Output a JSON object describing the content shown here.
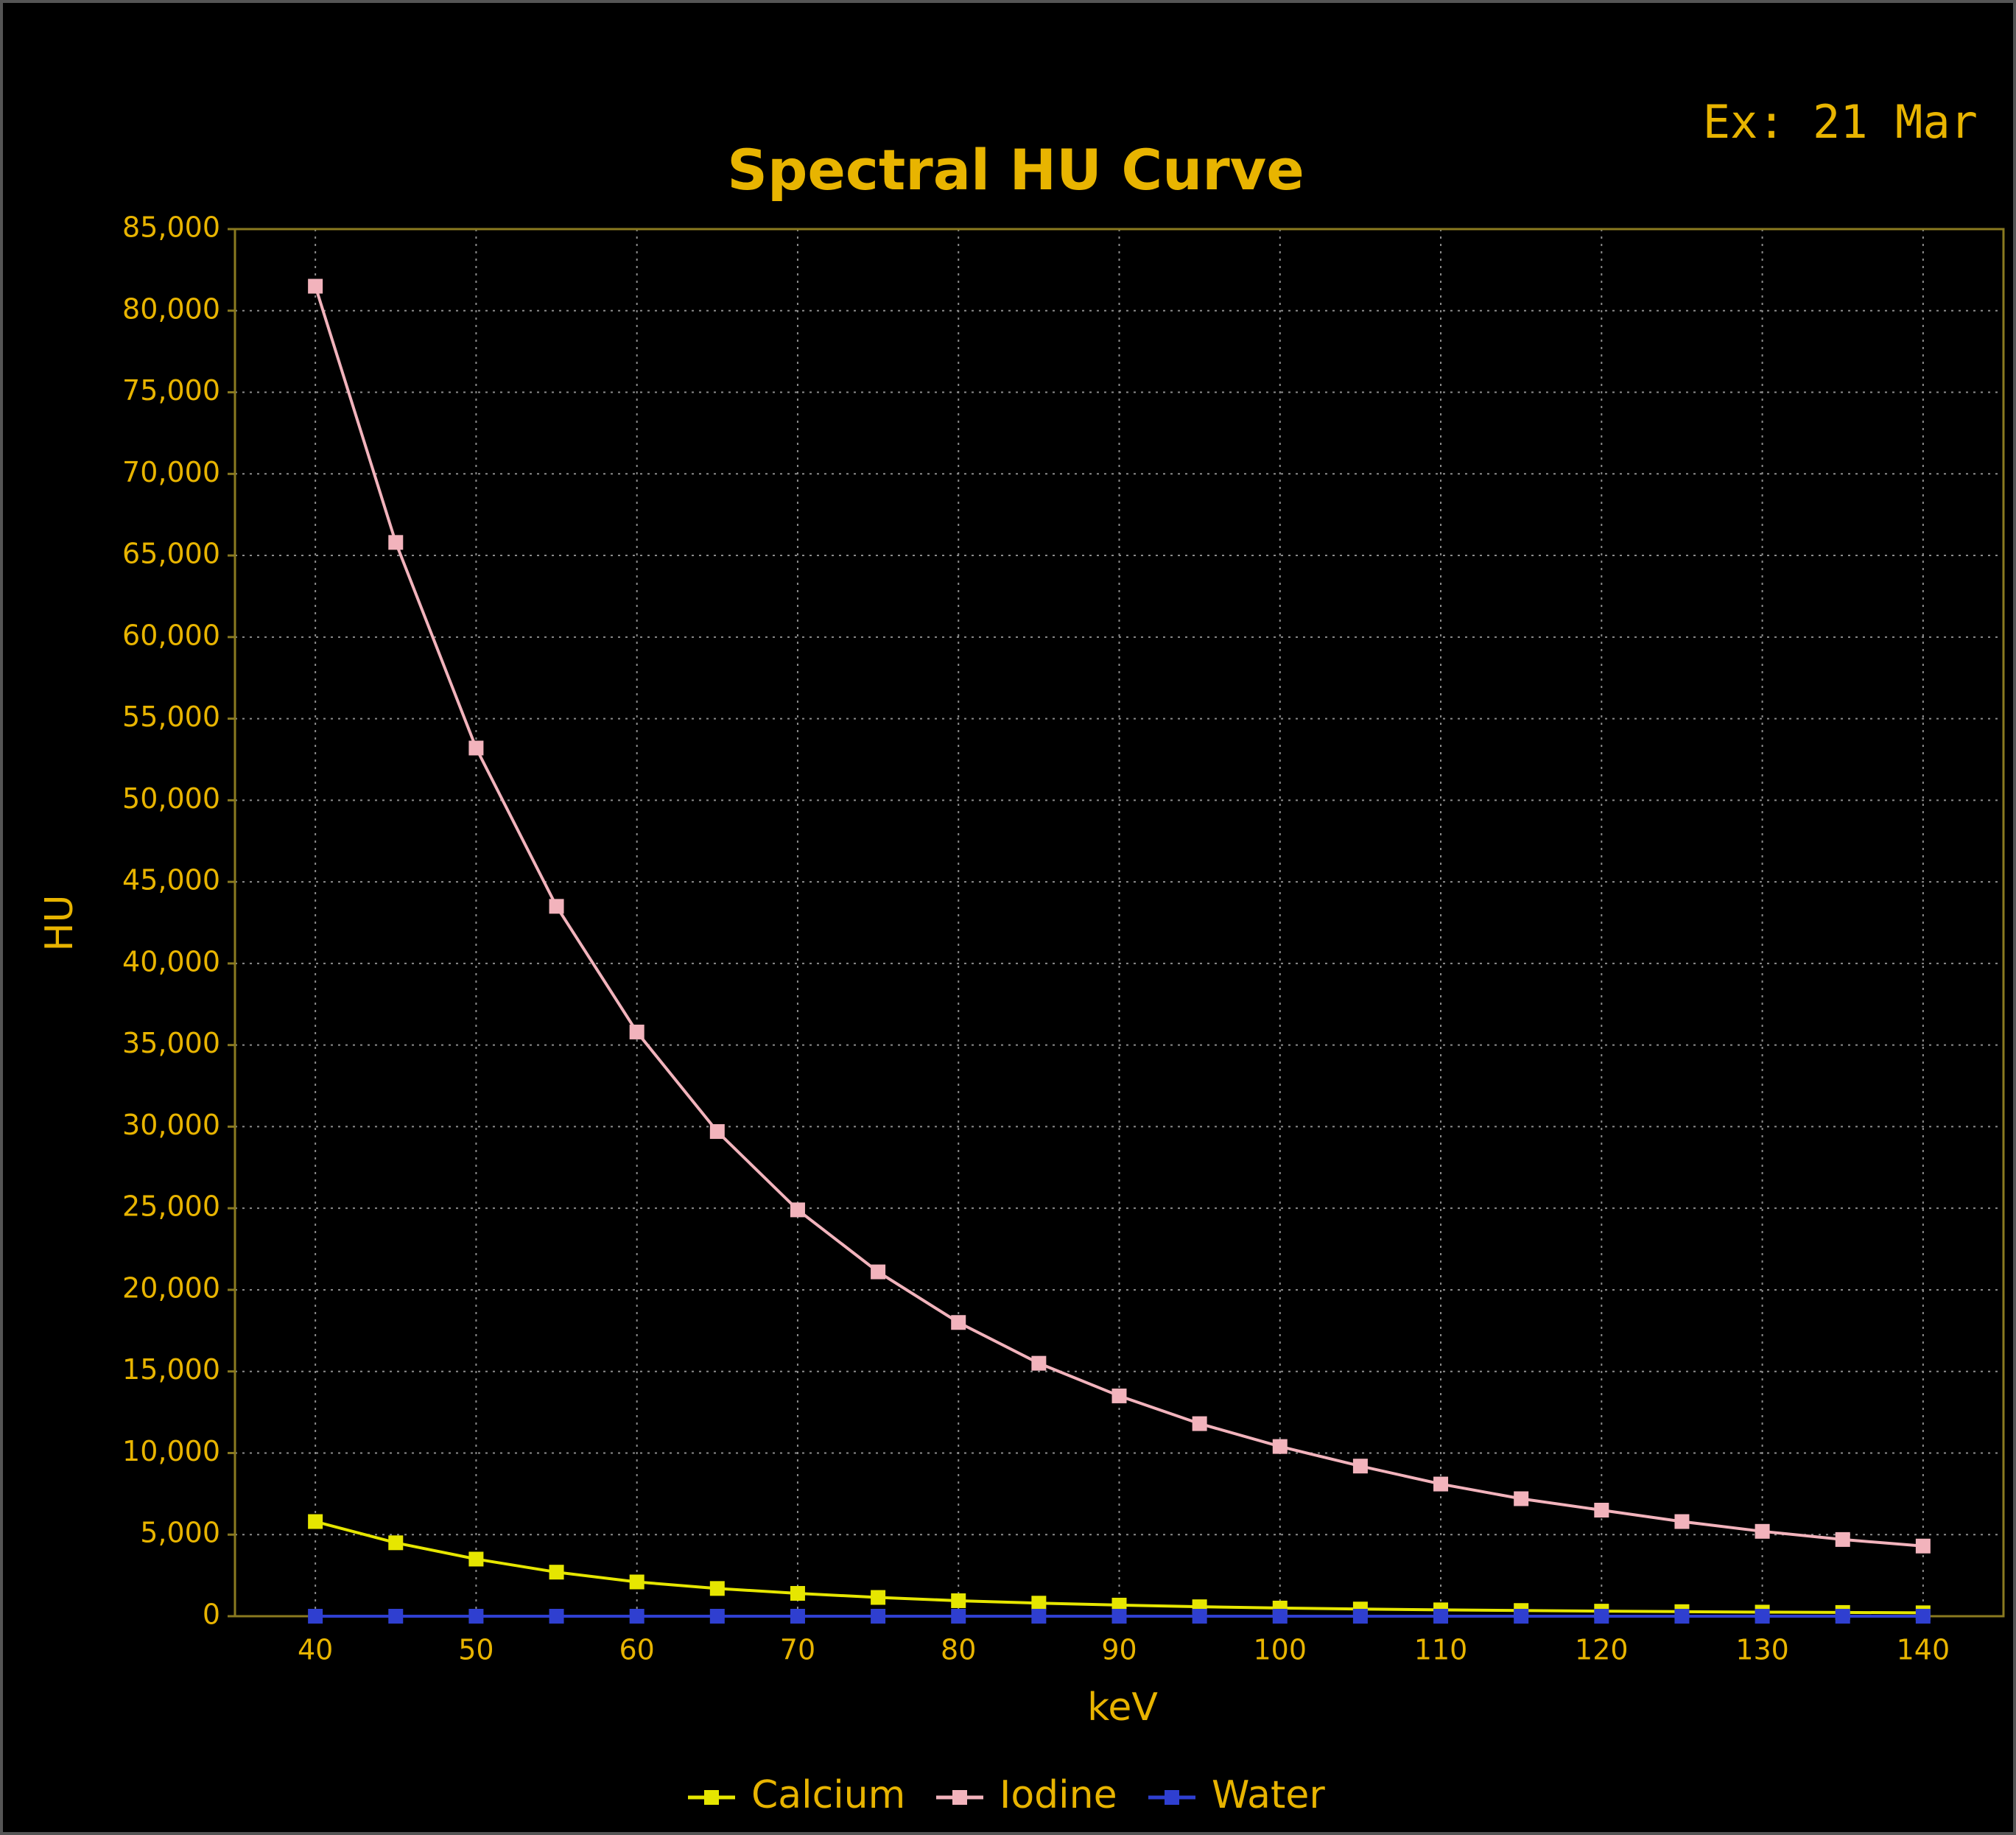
{
  "chart_data": {
    "type": "line",
    "title": "Spectral HU Curve",
    "annotation": "Ex: 21 Mar",
    "x_label": "keV",
    "y_label": "HU",
    "x": [
      40,
      45,
      50,
      55,
      60,
      65,
      70,
      75,
      80,
      85,
      90,
      95,
      100,
      105,
      110,
      115,
      120,
      125,
      130,
      135,
      140
    ],
    "series": [
      {
        "name": "Calcium",
        "color": "#e6e600",
        "values": [
          5800,
          4500,
          3500,
          2700,
          2100,
          1700,
          1400,
          1150,
          950,
          800,
          680,
          580,
          500,
          440,
          390,
          350,
          310,
          280,
          250,
          230,
          210
        ]
      },
      {
        "name": "Iodine",
        "color": "#f2b3bc",
        "values": [
          81500,
          65800,
          53200,
          43500,
          35800,
          29700,
          24900,
          21100,
          18000,
          15500,
          13500,
          11800,
          10400,
          9200,
          8100,
          7200,
          6500,
          5800,
          5200,
          4700,
          4300
        ]
      },
      {
        "name": "Water",
        "color": "#2f3fd0",
        "values": [
          0,
          0,
          0,
          0,
          0,
          0,
          0,
          0,
          0,
          0,
          0,
          0,
          0,
          0,
          0,
          0,
          0,
          0,
          0,
          0,
          0
        ]
      }
    ],
    "xlim": [
      35,
      145
    ],
    "ylim": [
      0,
      85000
    ],
    "xticks": [
      40,
      50,
      60,
      70,
      80,
      90,
      100,
      110,
      120,
      130,
      140
    ],
    "yticks": [
      0,
      {
        "value": 5000,
        "label": "5,000"
      },
      {
        "value": 10000,
        "label": "10,000"
      },
      {
        "value": 15000,
        "label": "15,000"
      },
      {
        "value": 20000,
        "label": "20,000"
      },
      {
        "value": 25000,
        "label": "25,000"
      },
      {
        "value": 30000,
        "label": "30,000"
      },
      {
        "value": 35000,
        "label": "35,000"
      },
      {
        "value": 40000,
        "label": "40,000"
      },
      {
        "value": 45000,
        "label": "45,000"
      },
      {
        "value": 50000,
        "label": "50,000"
      },
      {
        "value": 55000,
        "label": "55,000"
      },
      {
        "value": 60000,
        "label": "60,000"
      },
      {
        "value": 65000,
        "label": "65,000"
      },
      {
        "value": 70000,
        "label": "70,000"
      },
      {
        "value": 75000,
        "label": "75,000"
      },
      {
        "value": 80000,
        "label": "80,000"
      },
      {
        "value": 85000,
        "label": "85,000"
      }
    ],
    "grid": true
  }
}
